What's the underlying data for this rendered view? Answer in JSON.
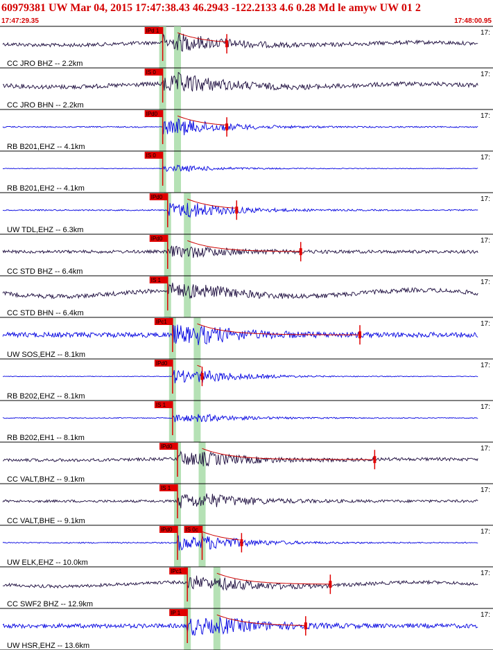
{
  "header": {
    "title": "60979381 UW Mar 04, 2015 17:47:38.43    46.2943 -122.2133  4.6 0.28 Md le amyw UW 01   2",
    "start_time": "17:47:29.35",
    "end_time": "17:48:00.95"
  },
  "colors": {
    "header_text": "#d40000",
    "trace_dark": "#1a0a3c",
    "trace_blue": "#0000e0",
    "pick_red": "#e00000",
    "coda_red": "#cc0000",
    "green_band": "#a8dca8"
  },
  "right_edge_label": "17:",
  "traces": [
    {
      "label": "CC JRO BHZ -- 2.2km",
      "color": "dark",
      "pick": "IPd 1",
      "p": 0.33,
      "s": 0.36,
      "amp": 0.75,
      "noise": 0.12,
      "lf": 0.2,
      "coda": 0.46
    },
    {
      "label": "CC JRO BHN -- 2.2km",
      "color": "dark",
      "pick": "IS 0",
      "p": 0.33,
      "s": 0.36,
      "amp": 0.85,
      "noise": 0.14,
      "lf": 0.22,
      "coda": 0.0
    },
    {
      "label": "RB B201,EHZ -- 4.1km",
      "color": "blue",
      "pick": "IPd0",
      "p": 0.33,
      "s": 0.36,
      "amp": 0.8,
      "noise": 0.04,
      "lf": 0.0,
      "coda": 0.46
    },
    {
      "label": "RB B201,EH2 -- 4.1km",
      "color": "blue",
      "pick": "IS 0",
      "p": 0.33,
      "s": 0.36,
      "amp": 0.3,
      "noise": 0.02,
      "lf": 0.0,
      "coda": 0.0
    },
    {
      "label": "UW TDL,EHZ -- 6.3km",
      "color": "blue",
      "pick": "IPd0",
      "p": 0.34,
      "s": 0.38,
      "amp": 0.85,
      "noise": 0.04,
      "lf": 0.0,
      "coda": 0.48
    },
    {
      "label": "CC STD BHZ -- 6.4km",
      "color": "dark",
      "pick": "IPd0",
      "p": 0.34,
      "s": 0.38,
      "amp": 0.55,
      "noise": 0.1,
      "lf": 0.0,
      "coda": 0.61
    },
    {
      "label": "CC STD BHN -- 6.4km",
      "color": "dark",
      "pick": "IS 1",
      "p": 0.34,
      "s": 0.38,
      "amp": 0.7,
      "noise": 0.14,
      "lf": 0.45,
      "coda": 0.0
    },
    {
      "label": "UW SOS,EHZ -- 8.1km",
      "color": "blue",
      "pick": "IPc1",
      "p": 0.35,
      "s": 0.4,
      "amp": 0.95,
      "noise": 0.16,
      "lf": 0.0,
      "coda": 0.73
    },
    {
      "label": "RB B202,EHZ -- 8.1km",
      "color": "blue",
      "pick": "IPd0",
      "p": 0.35,
      "s": 0.4,
      "amp": 0.8,
      "noise": 0.02,
      "lf": 0.0,
      "coda": 0.41
    },
    {
      "label": "RB B202,EH1 -- 8.1km",
      "color": "blue",
      "pick": "IS 1",
      "p": 0.35,
      "s": 0.4,
      "amp": 0.45,
      "noise": 0.03,
      "lf": 0.0,
      "coda": 0.0
    },
    {
      "label": "CC VALT,BHZ -- 9.1km",
      "color": "dark",
      "pick": "IPd0",
      "p": 0.36,
      "s": 0.41,
      "amp": 0.75,
      "noise": 0.1,
      "lf": 0.08,
      "coda": 0.76
    },
    {
      "label": "CC VALT,BHE -- 9.1km",
      "color": "dark",
      "pick": "IS 1",
      "p": 0.36,
      "s": 0.41,
      "amp": 0.85,
      "noise": 0.08,
      "lf": 0.0,
      "coda": 0.0
    },
    {
      "label": "UW ELK,EHZ -- 10.0km",
      "color": "blue",
      "pick": "IPd0",
      "pick2": "IS 0c",
      "p": 0.36,
      "s": 0.41,
      "amp": 0.85,
      "noise": 0.04,
      "lf": 0.0,
      "coda": 0.49
    },
    {
      "label": "CC SWF2 BHZ -- 12.9km",
      "color": "dark",
      "pick": "IPc1",
      "p": 0.38,
      "s": 0.44,
      "amp": 0.75,
      "noise": 0.1,
      "lf": 0.3,
      "coda": 0.67
    },
    {
      "label": "UW HSR,EHZ -- 13.6km",
      "color": "blue",
      "pick": "IP 1",
      "p": 0.38,
      "s": 0.44,
      "amp": 0.95,
      "noise": 0.14,
      "lf": 0.0,
      "coda": 0.62
    }
  ]
}
